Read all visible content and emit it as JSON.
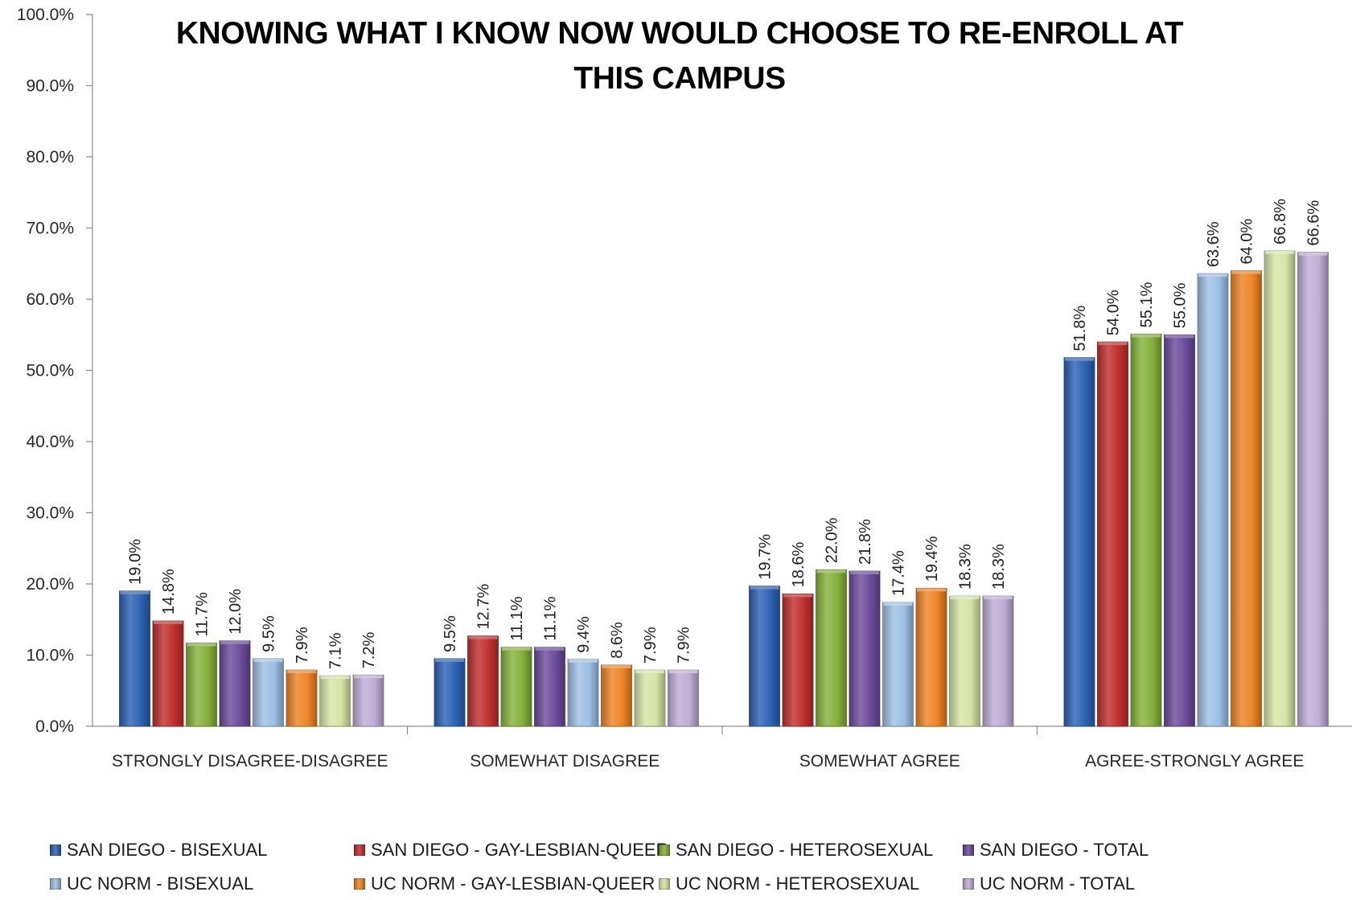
{
  "chart_data": {
    "type": "bar",
    "title_lines": [
      "KNOWING WHAT I KNOW NOW WOULD CHOOSE TO RE-ENROLL AT",
      "THIS CAMPUS"
    ],
    "categories": [
      "STRONGLY DISAGREE-DISAGREE",
      "SOMEWHAT DISAGREE",
      "SOMEWHAT AGREE",
      "AGREE-STRONGLY AGREE"
    ],
    "ylim": [
      0,
      100
    ],
    "yticks": [
      0,
      10,
      20,
      30,
      40,
      50,
      60,
      70,
      80,
      90,
      100
    ],
    "ytick_labels": [
      "0.0%",
      "10.0%",
      "20.0%",
      "30.0%",
      "40.0%",
      "50.0%",
      "60.0%",
      "70.0%",
      "80.0%",
      "90.0%",
      "100.0%"
    ],
    "legend_position": "bottom",
    "series": [
      {
        "name": "SAN DIEGO - BISEXUAL",
        "color": "#2e63b4",
        "values": [
          19.0,
          9.5,
          19.7,
          51.8
        ],
        "labels": [
          "19.0%",
          "9.5%",
          "19.7%",
          "51.8%"
        ]
      },
      {
        "name": "SAN DIEGO - GAY-LESBIAN-QUEER",
        "color": "#c0312f",
        "values": [
          14.8,
          12.7,
          18.6,
          54.0
        ],
        "labels": [
          "14.8%",
          "12.7%",
          "18.6%",
          "54.0%"
        ]
      },
      {
        "name": "SAN DIEGO - HETEROSEXUAL",
        "color": "#86b13b",
        "values": [
          11.7,
          11.1,
          22.0,
          55.1
        ],
        "labels": [
          "11.7%",
          "11.1%",
          "22.0%",
          "55.1%"
        ]
      },
      {
        "name": "SAN DIEGO - TOTAL",
        "color": "#6d4c9c",
        "values": [
          12.0,
          11.1,
          21.8,
          55.0
        ],
        "labels": [
          "12.0%",
          "11.1%",
          "21.8%",
          "55.0%"
        ]
      },
      {
        "name": "UC NORM - BISEXUAL",
        "color": "#9dc0e4",
        "values": [
          9.5,
          9.4,
          17.4,
          63.6
        ],
        "labels": [
          "9.5%",
          "9.4%",
          "17.4%",
          "63.6%"
        ]
      },
      {
        "name": "UC NORM - GAY-LESBIAN-QUEER",
        "color": "#ee8526",
        "values": [
          7.9,
          8.6,
          19.4,
          64.0
        ],
        "labels": [
          "7.9%",
          "8.6%",
          "19.4%",
          "64.0%"
        ]
      },
      {
        "name": "UC NORM - HETEROSEXUAL",
        "color": "#d6e4a6",
        "values": [
          7.1,
          7.9,
          18.3,
          66.8
        ],
        "labels": [
          "7.1%",
          "7.9%",
          "18.3%",
          "66.8%"
        ]
      },
      {
        "name": "UC NORM - TOTAL",
        "color": "#bfadd6",
        "values": [
          7.2,
          7.9,
          18.3,
          66.6
        ],
        "labels": [
          "7.2%",
          "7.9%",
          "18.3%",
          "66.6%"
        ]
      }
    ]
  }
}
